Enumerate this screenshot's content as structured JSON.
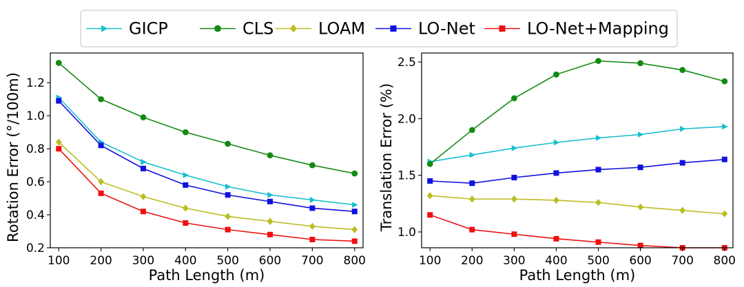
{
  "legend": {
    "placement": "top-center",
    "entries": [
      {
        "name": "GICP",
        "color": "#17becf",
        "marker": "triangle-right"
      },
      {
        "name": "CLS",
        "color": "#138a13",
        "marker": "circle"
      },
      {
        "name": "LOAM",
        "color": "#bcbd22",
        "marker": "diamond"
      },
      {
        "name": "LO-Net",
        "color": "#1010e0",
        "marker": "square"
      },
      {
        "name": "LO-Net+Mapping",
        "color": "#ee1010",
        "marker": "square"
      }
    ]
  },
  "chart_data": [
    {
      "type": "line",
      "xlabel": "Path Length (m)",
      "ylabel": "Rotation Error (°/100m)",
      "xlim": [
        80,
        820
      ],
      "ylim": [
        0.2,
        1.38
      ],
      "x": [
        100,
        200,
        300,
        400,
        500,
        600,
        700,
        800
      ],
      "xticks": [
        100,
        200,
        300,
        400,
        500,
        600,
        700,
        800
      ],
      "yticks": [
        0.2,
        0.4,
        0.6,
        0.8,
        1.0,
        1.2
      ],
      "ytick_labels": [
        "0.2",
        "0.4",
        "0.6",
        "0.8",
        "1.0",
        "1.2"
      ],
      "grid": false,
      "series": [
        {
          "name": "GICP",
          "values": [
            1.11,
            0.84,
            0.72,
            0.64,
            0.57,
            0.52,
            0.49,
            0.46
          ]
        },
        {
          "name": "CLS",
          "values": [
            1.32,
            1.1,
            0.99,
            0.9,
            0.83,
            0.76,
            0.7,
            0.65
          ]
        },
        {
          "name": "LOAM",
          "values": [
            0.84,
            0.6,
            0.51,
            0.44,
            0.39,
            0.36,
            0.33,
            0.31
          ]
        },
        {
          "name": "LO-Net",
          "values": [
            1.09,
            0.82,
            0.68,
            0.58,
            0.52,
            0.48,
            0.44,
            0.42
          ]
        },
        {
          "name": "LO-Net+Mapping",
          "values": [
            0.8,
            0.53,
            0.42,
            0.35,
            0.31,
            0.28,
            0.25,
            0.24
          ]
        }
      ]
    },
    {
      "type": "line",
      "xlabel": "Path Length (m)",
      "ylabel": "Translation Error (%)",
      "xlim": [
        80,
        820
      ],
      "ylim": [
        0.86,
        2.58
      ],
      "x": [
        100,
        200,
        300,
        400,
        500,
        600,
        700,
        800
      ],
      "xticks": [
        100,
        200,
        300,
        400,
        500,
        600,
        700,
        800
      ],
      "yticks": [
        1.0,
        1.5,
        2.0,
        2.5
      ],
      "ytick_labels": [
        "1.0",
        "1.5",
        "2.0",
        "2.5"
      ],
      "grid": false,
      "series": [
        {
          "name": "GICP",
          "values": [
            1.62,
            1.68,
            1.74,
            1.79,
            1.83,
            1.86,
            1.91,
            1.93
          ]
        },
        {
          "name": "CLS",
          "values": [
            1.6,
            1.9,
            2.18,
            2.39,
            2.51,
            2.49,
            2.43,
            2.33
          ]
        },
        {
          "name": "LOAM",
          "values": [
            1.32,
            1.29,
            1.29,
            1.28,
            1.26,
            1.22,
            1.19,
            1.16
          ]
        },
        {
          "name": "LO-Net",
          "values": [
            1.45,
            1.43,
            1.48,
            1.52,
            1.55,
            1.57,
            1.61,
            1.64
          ]
        },
        {
          "name": "LO-Net+Mapping",
          "values": [
            1.15,
            1.02,
            0.98,
            0.94,
            0.91,
            0.88,
            0.86,
            0.86
          ]
        }
      ]
    }
  ]
}
